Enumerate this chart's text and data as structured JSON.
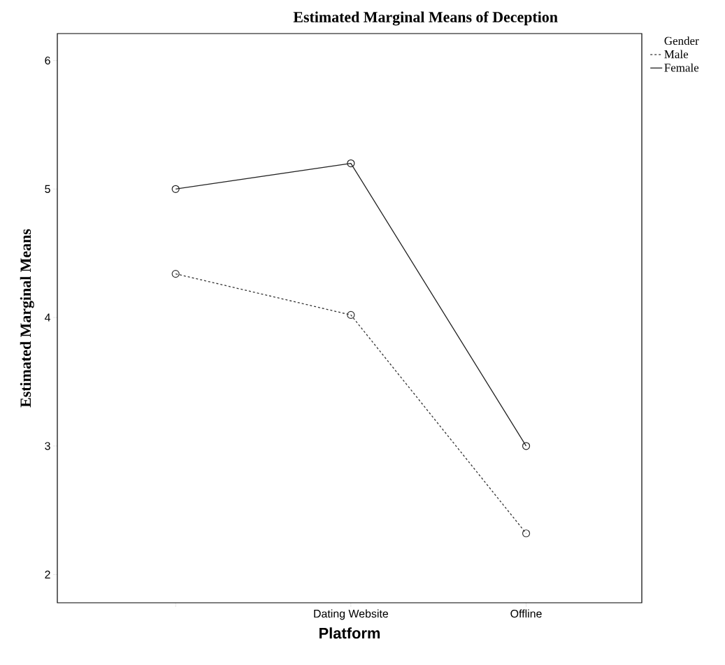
{
  "chart_data": {
    "type": "line",
    "title": "Estimated Marginal Means of Deception",
    "xlabel": "Platform",
    "ylabel": "Estimated Marginal Means",
    "legend_title": "Gender",
    "categories": [
      null,
      "Dating Website",
      "Offline"
    ],
    "series": [
      {
        "name": "Male",
        "color": "#333333",
        "values": [
          4.34,
          4.02,
          2.32
        ],
        "line_style": "dashed"
      },
      {
        "name": "Female",
        "color": "#222222",
        "values": [
          5.0,
          5.2,
          3.0
        ],
        "line_style": "solid"
      }
    ],
    "ylim": [
      1.78,
      6.21
    ],
    "yticks": [
      2,
      3,
      4,
      5,
      6
    ],
    "marker": "circle",
    "legend": "top right",
    "grid": false
  }
}
